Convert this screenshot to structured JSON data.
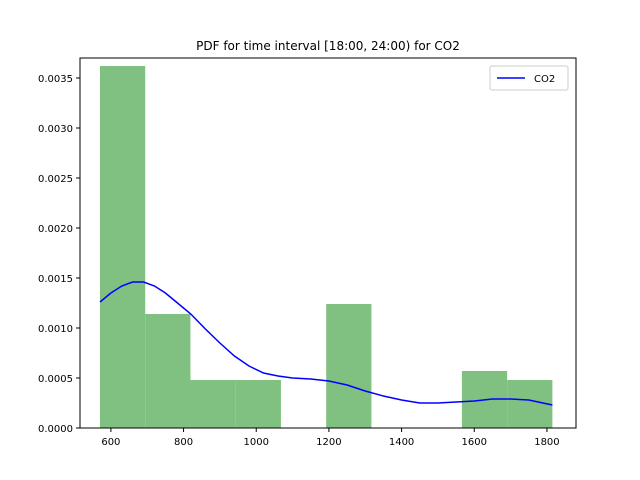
{
  "chart_data": {
    "type": "bar",
    "title": "PDF for time interval [18:00, 24:00) for CO2",
    "xlabel": "",
    "ylabel": "",
    "xlim": [
      515,
      1880
    ],
    "ylim": [
      0,
      0.0037
    ],
    "grid": false,
    "legend": {
      "placement": "top-right",
      "entries": [
        "CO2"
      ]
    },
    "x_ticks": [
      600,
      800,
      1000,
      1200,
      1400,
      1600,
      1800
    ],
    "y_ticks": [
      0.0,
      0.0005,
      0.001,
      0.0015,
      0.002,
      0.0025,
      0.003,
      0.0035
    ],
    "y_tick_labels": [
      "0.0000",
      "0.0005",
      "0.0010",
      "0.0015",
      "0.0020",
      "0.0025",
      "0.0030",
      "0.0035"
    ],
    "histogram": {
      "color": "#80c080",
      "bin_edges": [
        570,
        694.5,
        819,
        943.5,
        1068,
        1192.5,
        1317,
        1441.5,
        1566,
        1690.5,
        1815
      ],
      "densities": [
        0.00362,
        0.00114,
        0.00048,
        0.00048,
        0.0,
        0.00124,
        0.0,
        0.0,
        0.00057,
        0.00048
      ]
    },
    "series": [
      {
        "name": "CO2",
        "type": "line",
        "color": "#0000ff",
        "x": [
          570,
          600,
          630,
          660,
          690,
          720,
          750,
          780,
          820,
          860,
          900,
          940,
          980,
          1020,
          1060,
          1100,
          1150,
          1200,
          1250,
          1300,
          1350,
          1400,
          1450,
          1500,
          1550,
          1600,
          1650,
          1700,
          1750,
          1815
        ],
        "y": [
          0.00126,
          0.00135,
          0.00142,
          0.00146,
          0.00146,
          0.00142,
          0.00135,
          0.00126,
          0.00114,
          0.00099,
          0.00085,
          0.00072,
          0.00062,
          0.00055,
          0.00052,
          0.0005,
          0.00049,
          0.00047,
          0.00043,
          0.00037,
          0.00032,
          0.00028,
          0.00025,
          0.00025,
          0.00026,
          0.00027,
          0.00029,
          0.00029,
          0.00028,
          0.00023
        ]
      }
    ]
  }
}
